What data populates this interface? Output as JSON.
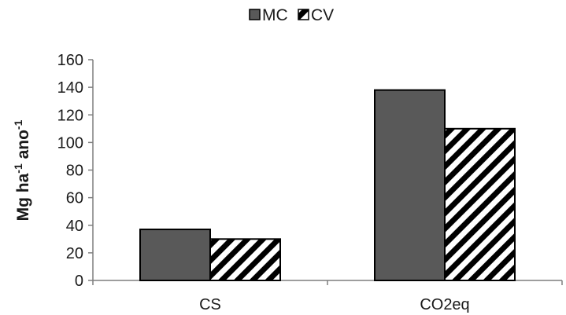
{
  "chart_data": {
    "type": "bar",
    "categories": [
      "CS",
      "CO2eq"
    ],
    "series": [
      {
        "name": "MC",
        "values": [
          37,
          138
        ],
        "fill": "#595959",
        "pattern": "solid"
      },
      {
        "name": "CV",
        "values": [
          30,
          110
        ],
        "fill": "#ffffff",
        "pattern": "diagonal-stripes"
      }
    ],
    "ylabel_parts": [
      {
        "text": "Mg ha",
        "sup": false
      },
      {
        "text": "-1",
        "sup": true
      },
      {
        "text": " ano",
        "sup": false
      },
      {
        "text": "-1",
        "sup": true
      }
    ],
    "xlabel": "",
    "ylim": [
      0,
      160
    ],
    "yticks": [
      "0",
      "20",
      "40",
      "60",
      "80",
      "100",
      "120",
      "140",
      "160"
    ],
    "grid": false,
    "legend_position": "top-center",
    "bar_stroke": "#000000"
  }
}
